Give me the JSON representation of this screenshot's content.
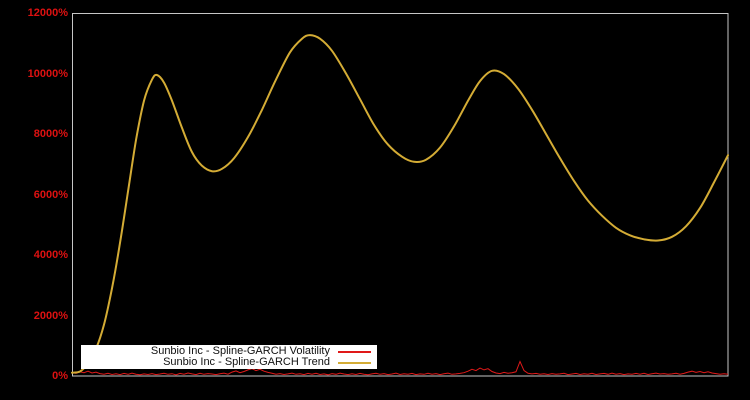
{
  "figure": {
    "background_color": "#000000",
    "plot_border_color": "#c6c6c6"
  },
  "y_axis": {
    "tick_labels": [
      "0%",
      "2000%",
      "4000%",
      "6000%",
      "8000%",
      "10000%",
      "12000%"
    ],
    "tick_values": [
      0,
      2000,
      4000,
      6000,
      8000,
      10000,
      12000
    ],
    "label_color": "#dd1111"
  },
  "x_axis": {
    "tick_labels": []
  },
  "legend": {
    "background_color": "#ffffff",
    "position": "bottom-left"
  },
  "chart_data": {
    "type": "line",
    "title": "",
    "xlabel": "",
    "ylabel": "",
    "ylim": [
      0,
      12000
    ],
    "grid": false,
    "legend_position": "bottom-left",
    "series": [
      {
        "name": "Sunbio Inc - Spline-GARCH Volatility",
        "color": "#e01919",
        "style": "noisy-line",
        "x_mode": "uniform-0-1",
        "values_pct": [
          120,
          90,
          140,
          110,
          160,
          100,
          130,
          80,
          60,
          90,
          50,
          75,
          45,
          85,
          55,
          95,
          60,
          40,
          70,
          50,
          80,
          45,
          65,
          90,
          55,
          75,
          40,
          85,
          60,
          100,
          70,
          45,
          90,
          55,
          80,
          65,
          45,
          75,
          95,
          60,
          130,
          170,
          110,
          150,
          200,
          240,
          180,
          220,
          160,
          120,
          90,
          60,
          80,
          50,
          70,
          95,
          55,
          75,
          45,
          85,
          60,
          90,
          50,
          70,
          40,
          80,
          55,
          95,
          65,
          45,
          75,
          50,
          85,
          60,
          40,
          70,
          90,
          55,
          80,
          45,
          65,
          95,
          50,
          75,
          60,
          85,
          45,
          70,
          55,
          90,
          60,
          80,
          45,
          75,
          95,
          55,
          70,
          85,
          110,
          160,
          220,
          180,
          260,
          200,
          240,
          150,
          100,
          80,
          120,
          90,
          110,
          140,
          480,
          180,
          90,
          70,
          85,
          60,
          75,
          50,
          80,
          55,
          70,
          90,
          45,
          65,
          85,
          50,
          75,
          60,
          90,
          50,
          70,
          85,
          55,
          95,
          60,
          80,
          45,
          70,
          55,
          85,
          60,
          90,
          50,
          75,
          95,
          65,
          80,
          55,
          70,
          90,
          60,
          85,
          130,
          160,
          120,
          150,
          110,
          140,
          100,
          80,
          60,
          75,
          55
        ]
      },
      {
        "name": "Sunbio Inc - Spline-GARCH Trend",
        "color": "#d4ac35",
        "style": "smooth-line",
        "x_frac": [
          0,
          0.0122,
          0.0244,
          0.0366,
          0.0488,
          0.061,
          0.0732,
          0.0854,
          0.0976,
          0.1098,
          0.122,
          0.1296,
          0.1402,
          0.1524,
          0.1677,
          0.1829,
          0.1982,
          0.2134,
          0.2287,
          0.247,
          0.2683,
          0.2896,
          0.311,
          0.3323,
          0.3506,
          0.3628,
          0.378,
          0.3963,
          0.4177,
          0.439,
          0.4604,
          0.4817,
          0.503,
          0.5213,
          0.5396,
          0.561,
          0.5823,
          0.6037,
          0.622,
          0.6402,
          0.6585,
          0.6799,
          0.7012,
          0.7226,
          0.7439,
          0.7652,
          0.7866,
          0.8079,
          0.8293,
          0.8506,
          0.872,
          0.8933,
          0.9146,
          0.936,
          0.9573,
          0.9787,
          1
        ],
        "values_pct": [
          110,
          150,
          420,
          900,
          1700,
          2900,
          4400,
          6100,
          7800,
          9100,
          9800,
          9950,
          9700,
          9100,
          8200,
          7400,
          6950,
          6770,
          6850,
          7200,
          7900,
          8800,
          9800,
          10700,
          11150,
          11270,
          11150,
          10750,
          10000,
          9150,
          8300,
          7650,
          7250,
          7080,
          7150,
          7550,
          8250,
          9100,
          9750,
          10090,
          9980,
          9500,
          8800,
          8000,
          7200,
          6450,
          5800,
          5300,
          4900,
          4650,
          4520,
          4480,
          4600,
          4950,
          5550,
          6400,
          7300
        ]
      }
    ]
  }
}
